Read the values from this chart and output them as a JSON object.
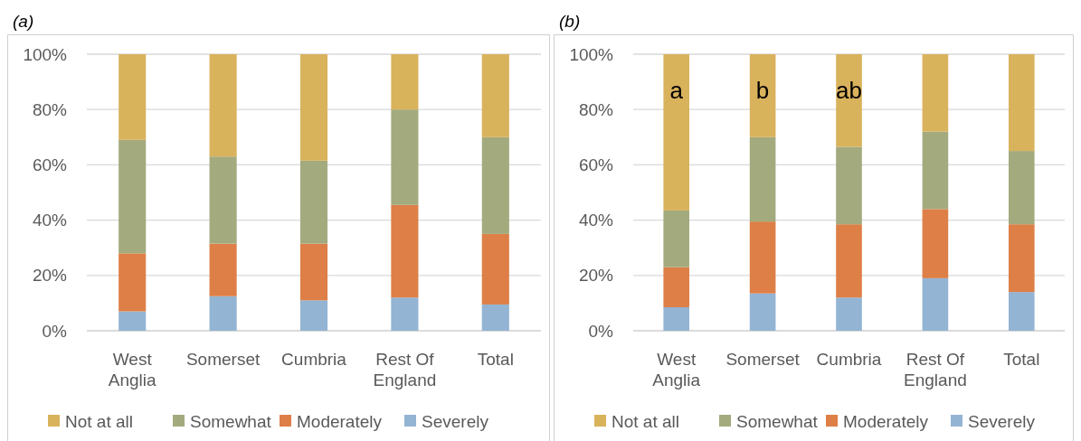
{
  "chart_data": [
    {
      "type": "bar",
      "title": "(a)",
      "stacked": true,
      "categories": [
        "West Anglia",
        "Somerset",
        "Cumbria",
        "Rest Of England",
        "Total"
      ],
      "ylim": [
        0,
        100
      ],
      "yticks": [
        {
          "value": 0,
          "label": "0%"
        },
        {
          "value": 20,
          "label": "20%"
        },
        {
          "value": 40,
          "label": "40%"
        },
        {
          "value": 60,
          "label": "60%"
        },
        {
          "value": 80,
          "label": "80%"
        },
        {
          "value": 100,
          "label": "100%"
        }
      ],
      "grid": "y",
      "legend": "bottom",
      "series": [
        {
          "name": "Severely",
          "color": "#93b4d3",
          "values": [
            7,
            12.5,
            11,
            12,
            9.5
          ]
        },
        {
          "name": "Moderately",
          "color": "#dd7f47",
          "values": [
            21,
            19,
            20.5,
            33.5,
            25.5
          ]
        },
        {
          "name": "Somewhat",
          "color": "#a3aa7e",
          "values": [
            41,
            31.5,
            30,
            34.5,
            35
          ]
        },
        {
          "name": "Not at all",
          "color": "#d9b25c",
          "values": [
            31,
            37,
            38.5,
            20,
            30
          ]
        }
      ]
    },
    {
      "type": "bar",
      "title": "(b)",
      "stacked": true,
      "categories": [
        "West Anglia",
        "Somerset",
        "Cumbria",
        "Rest Of England",
        "Total"
      ],
      "ylim": [
        0,
        100
      ],
      "yticks": [
        {
          "value": 0,
          "label": "0%"
        },
        {
          "value": 20,
          "label": "20%"
        },
        {
          "value": 40,
          "label": "40%"
        },
        {
          "value": 60,
          "label": "60%"
        },
        {
          "value": 80,
          "label": "80%"
        },
        {
          "value": 100,
          "label": "100%"
        }
      ],
      "grid": "y",
      "legend": "bottom",
      "series": [
        {
          "name": "Severely",
          "color": "#93b4d3",
          "values": [
            8.5,
            13.5,
            12,
            19,
            14
          ]
        },
        {
          "name": "Moderately",
          "color": "#dd7f47",
          "values": [
            14.5,
            26,
            26.5,
            25,
            24.5
          ]
        },
        {
          "name": "Somewhat",
          "color": "#a3aa7e",
          "values": [
            20.5,
            30.5,
            28,
            28,
            26.5
          ]
        },
        {
          "name": "Not at all",
          "color": "#d9b25c",
          "values": [
            56.5,
            30,
            33.5,
            28,
            35
          ]
        }
      ],
      "annotations": [
        "a",
        "b",
        "ab"
      ]
    }
  ]
}
